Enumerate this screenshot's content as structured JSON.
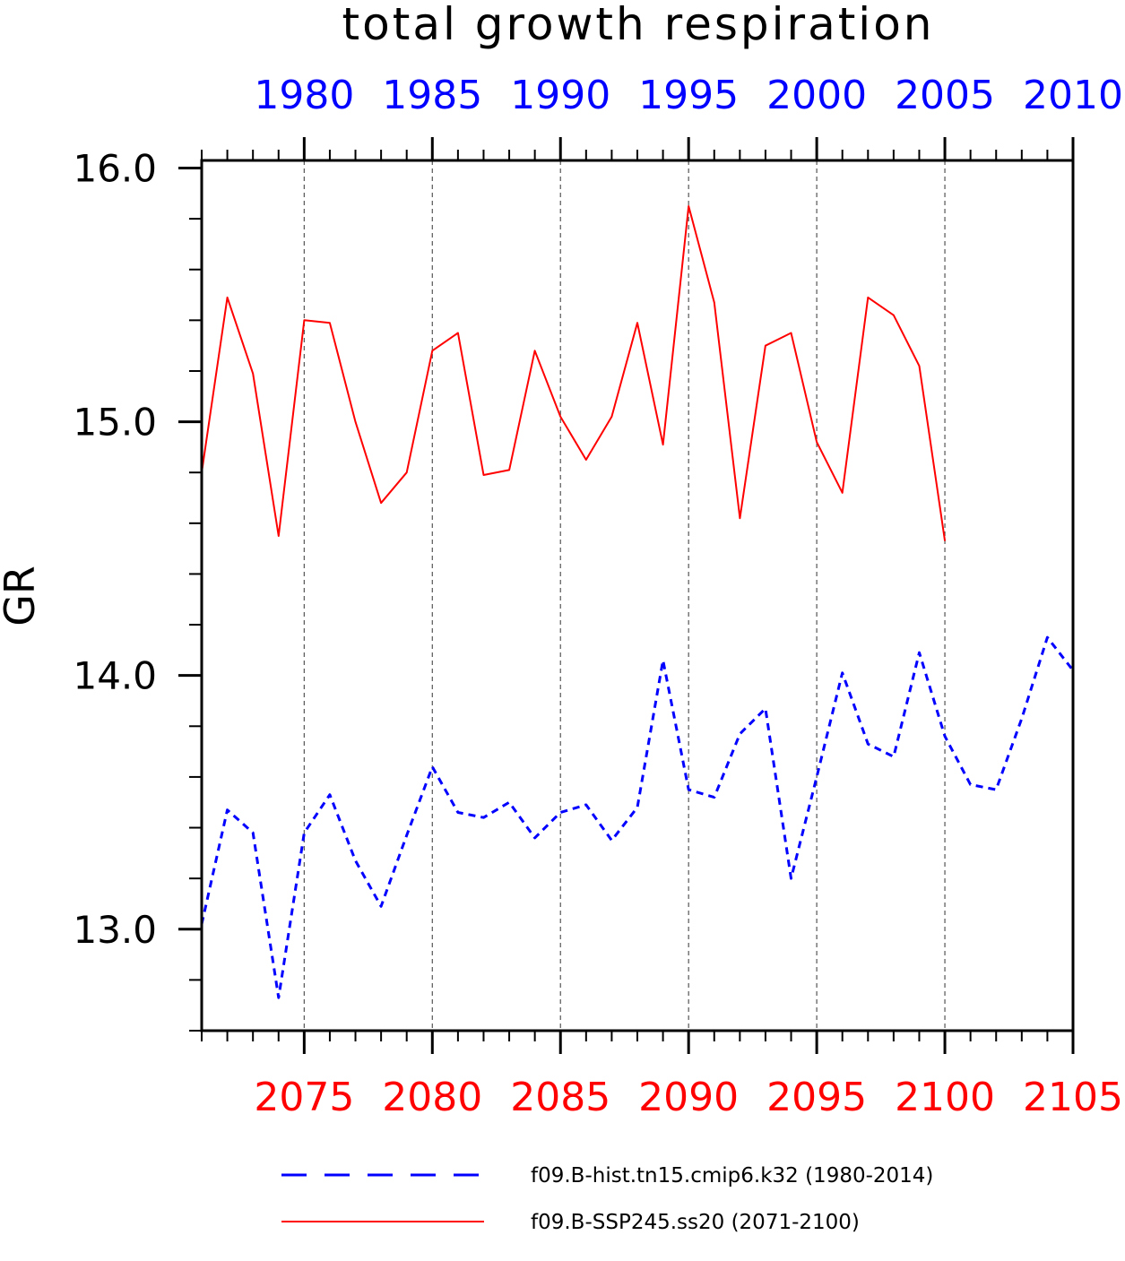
{
  "chart_data": {
    "type": "line",
    "title": "total growth respiration",
    "ylabel": "GR",
    "ylim": [
      12.6,
      16.03
    ],
    "yticks": [
      13.0,
      14.0,
      15.0,
      16.0
    ],
    "ytick_labels": [
      "13.0",
      "14.0",
      "15.0",
      "16.0"
    ],
    "grid": "vertical dashed lines at labeled year ticks",
    "top_axis": {
      "color": "#0000ff",
      "range": [
        1976,
        2010
      ],
      "tick_labels": [
        "1980",
        "1985",
        "1990",
        "1995",
        "2000",
        "2005",
        "2010"
      ]
    },
    "bottom_axis": {
      "color": "#ff0000",
      "range": [
        2071,
        2105
      ],
      "tick_labels": [
        "2075",
        "2080",
        "2085",
        "2090",
        "2095",
        "2100",
        "2105"
      ]
    },
    "legend_position": "bottom",
    "series": [
      {
        "name": "f09.B-hist.tn15.cmip6.k32 (1980-2014)",
        "color": "#0000ff",
        "style": "dashed",
        "axis": "top",
        "x": [
          1976,
          1977,
          1978,
          1979,
          1980,
          1981,
          1982,
          1983,
          1984,
          1985,
          1986,
          1987,
          1988,
          1989,
          1990,
          1991,
          1992,
          1993,
          1994,
          1995,
          1996,
          1997,
          1998,
          1999,
          2000,
          2001,
          2002,
          2003,
          2004,
          2005,
          2006,
          2007,
          2008,
          2009,
          2010
        ],
        "y": [
          13.02,
          13.47,
          13.38,
          12.73,
          13.38,
          13.53,
          13.27,
          13.09,
          13.37,
          13.64,
          13.46,
          13.44,
          13.5,
          13.36,
          13.46,
          13.49,
          13.35,
          13.48,
          14.06,
          13.55,
          13.52,
          13.77,
          13.87,
          13.2,
          13.6,
          14.01,
          13.73,
          13.68,
          14.09,
          13.76,
          13.57,
          13.55,
          13.83,
          14.15,
          14.02
        ]
      },
      {
        "name": "f09.B-SSP245.ss20 (2071-2100)",
        "color": "#ff0000",
        "style": "solid",
        "axis": "bottom",
        "x": [
          2071,
          2072,
          2073,
          2074,
          2075,
          2076,
          2077,
          2078,
          2079,
          2080,
          2081,
          2082,
          2083,
          2084,
          2085,
          2086,
          2087,
          2088,
          2089,
          2090,
          2091,
          2092,
          2093,
          2094,
          2095,
          2096,
          2097,
          2098,
          2099,
          2100
        ],
        "y": [
          14.8,
          15.49,
          15.19,
          14.55,
          15.4,
          15.39,
          15.0,
          14.68,
          14.8,
          15.28,
          15.35,
          14.79,
          14.81,
          15.28,
          15.02,
          14.85,
          15.02,
          15.39,
          14.91,
          15.85,
          15.47,
          14.62,
          15.3,
          15.35,
          14.92,
          14.72,
          15.49,
          15.42,
          15.22,
          14.53
        ]
      }
    ]
  },
  "colors": {
    "historical": "#0000ff",
    "future": "#ff0000",
    "axis": "#000000",
    "grid": "#555555"
  }
}
